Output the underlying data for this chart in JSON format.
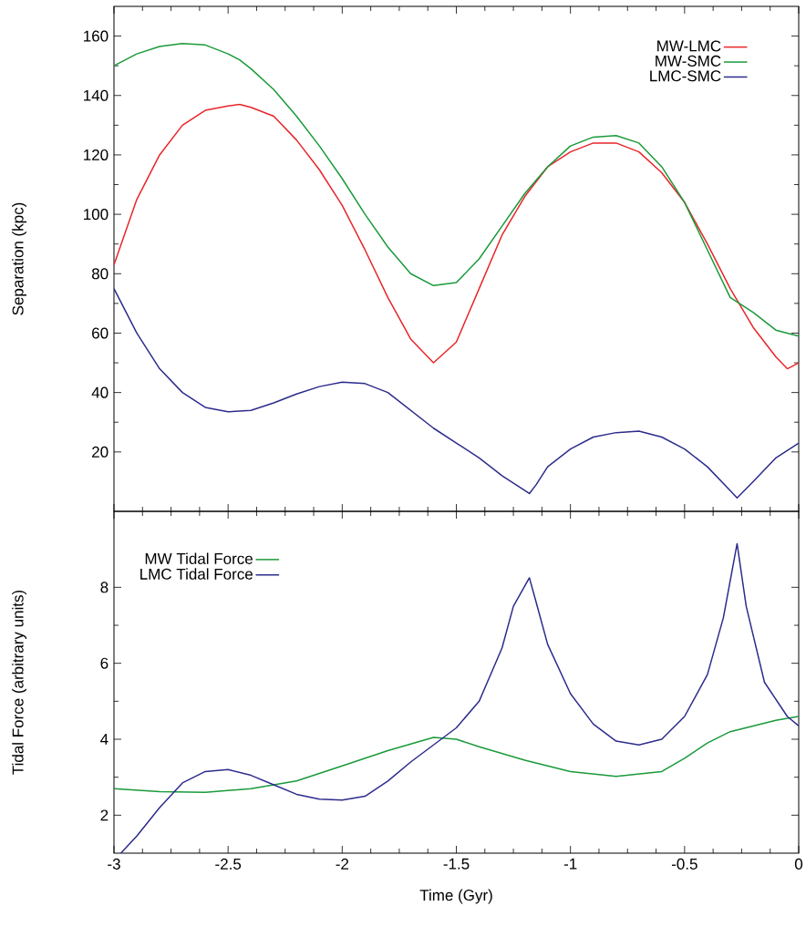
{
  "chart_data": [
    {
      "type": "line",
      "ylabel": "Separation (kpc)",
      "xlim": [
        -3,
        0
      ],
      "xticks": [
        -3,
        -2.5,
        -2,
        -1.5,
        -1,
        -0.5,
        0
      ],
      "ylim": [
        0,
        170
      ],
      "yticks": [
        20,
        40,
        60,
        80,
        100,
        120,
        140,
        160
      ],
      "tick_labels": "y",
      "legend": "top right",
      "x": [
        -3,
        -2.9,
        -2.8,
        -2.7,
        -2.6,
        -2.5,
        -2.45,
        -2.4,
        -2.3,
        -2.2,
        -2.1,
        -2.0,
        -1.9,
        -1.8,
        -1.7,
        -1.6,
        -1.5,
        -1.4,
        -1.3,
        -1.2,
        -1.1,
        -1.0,
        -0.9,
        -0.8,
        -0.7,
        -0.6,
        -0.5,
        -0.4,
        -0.3,
        -0.2,
        -0.1,
        -0.05,
        0
      ],
      "series": [
        {
          "name": "MW-LMC",
          "color": "#e8262a",
          "values": [
            83,
            105,
            120,
            130,
            135,
            136.5,
            137,
            136,
            133,
            125,
            115,
            103,
            88,
            72,
            58,
            50,
            57,
            75,
            93,
            106,
            116,
            121,
            124,
            124,
            121,
            114,
            104,
            90,
            75,
            62,
            52,
            48,
            50
          ]
        },
        {
          "name": "MW-SMC",
          "color": "#1a9a3a",
          "values": [
            150,
            154,
            156.5,
            157.5,
            157,
            154,
            152,
            149,
            142,
            133,
            123,
            112,
            100,
            89,
            80,
            76,
            77,
            85,
            96,
            107,
            116,
            123,
            126,
            126.5,
            124,
            116,
            104,
            88,
            72,
            67,
            61,
            60,
            59
          ]
        },
        {
          "name": "LMC-SMC",
          "color": "#2c2c8c",
          "x": [
            -3,
            -2.9,
            -2.8,
            -2.7,
            -2.6,
            -2.5,
            -2.4,
            -2.3,
            -2.2,
            -2.1,
            -2.0,
            -1.9,
            -1.8,
            -1.7,
            -1.6,
            -1.5,
            -1.4,
            -1.3,
            -1.2,
            -1.18,
            -1.15,
            -1.1,
            -1.0,
            -0.9,
            -0.8,
            -0.7,
            -0.6,
            -0.5,
            -0.4,
            -0.3,
            -0.27,
            -0.2,
            -0.1,
            0
          ],
          "values": [
            75,
            60,
            48,
            40,
            35,
            33.5,
            34,
            36.5,
            39.5,
            42,
            43.5,
            43,
            40,
            34,
            28,
            23,
            18,
            12,
            7,
            6,
            9,
            15,
            21,
            25,
            26.5,
            27,
            25,
            21,
            15,
            7,
            4.5,
            10,
            18,
            23
          ]
        }
      ]
    },
    {
      "type": "line",
      "xlabel": "Time (Gyr)",
      "ylabel": "Tidal Force (arbitrary units)",
      "xlim": [
        -3,
        0
      ],
      "xticks": [
        -3,
        -2.5,
        -2,
        -1.5,
        -1,
        -0.5,
        0
      ],
      "ylim": [
        1,
        10
      ],
      "yticks": [
        2,
        4,
        6,
        8
      ],
      "legend": "top left",
      "series": [
        {
          "name": "MW Tidal Force",
          "color": "#1a9a3a",
          "x": [
            -3,
            -2.8,
            -2.6,
            -2.4,
            -2.2,
            -2.0,
            -1.8,
            -1.6,
            -1.5,
            -1.4,
            -1.2,
            -1.0,
            -0.8,
            -0.6,
            -0.5,
            -0.4,
            -0.3,
            -0.2,
            -0.1,
            0
          ],
          "values": [
            2.7,
            2.62,
            2.6,
            2.7,
            2.9,
            3.3,
            3.7,
            4.05,
            4.0,
            3.8,
            3.45,
            3.15,
            3.02,
            3.15,
            3.5,
            3.9,
            4.2,
            4.35,
            4.5,
            4.6
          ]
        },
        {
          "name": "LMC Tidal Force",
          "color": "#2c2c8c",
          "x": [
            -2.97,
            -2.9,
            -2.8,
            -2.7,
            -2.6,
            -2.5,
            -2.4,
            -2.3,
            -2.2,
            -2.1,
            -2.0,
            -1.9,
            -1.8,
            -1.7,
            -1.6,
            -1.5,
            -1.4,
            -1.3,
            -1.25,
            -1.18,
            -1.15,
            -1.1,
            -1.0,
            -0.9,
            -0.8,
            -0.7,
            -0.6,
            -0.5,
            -0.4,
            -0.33,
            -0.27,
            -0.23,
            -0.15,
            -0.05,
            0
          ],
          "values": [
            1.0,
            1.45,
            2.2,
            2.85,
            3.15,
            3.2,
            3.05,
            2.8,
            2.55,
            2.42,
            2.4,
            2.5,
            2.9,
            3.4,
            3.85,
            4.3,
            5.0,
            6.4,
            7.5,
            8.25,
            7.6,
            6.5,
            5.2,
            4.4,
            3.95,
            3.85,
            4.0,
            4.6,
            5.7,
            7.2,
            9.15,
            7.5,
            5.5,
            4.6,
            4.35
          ]
        }
      ]
    }
  ]
}
